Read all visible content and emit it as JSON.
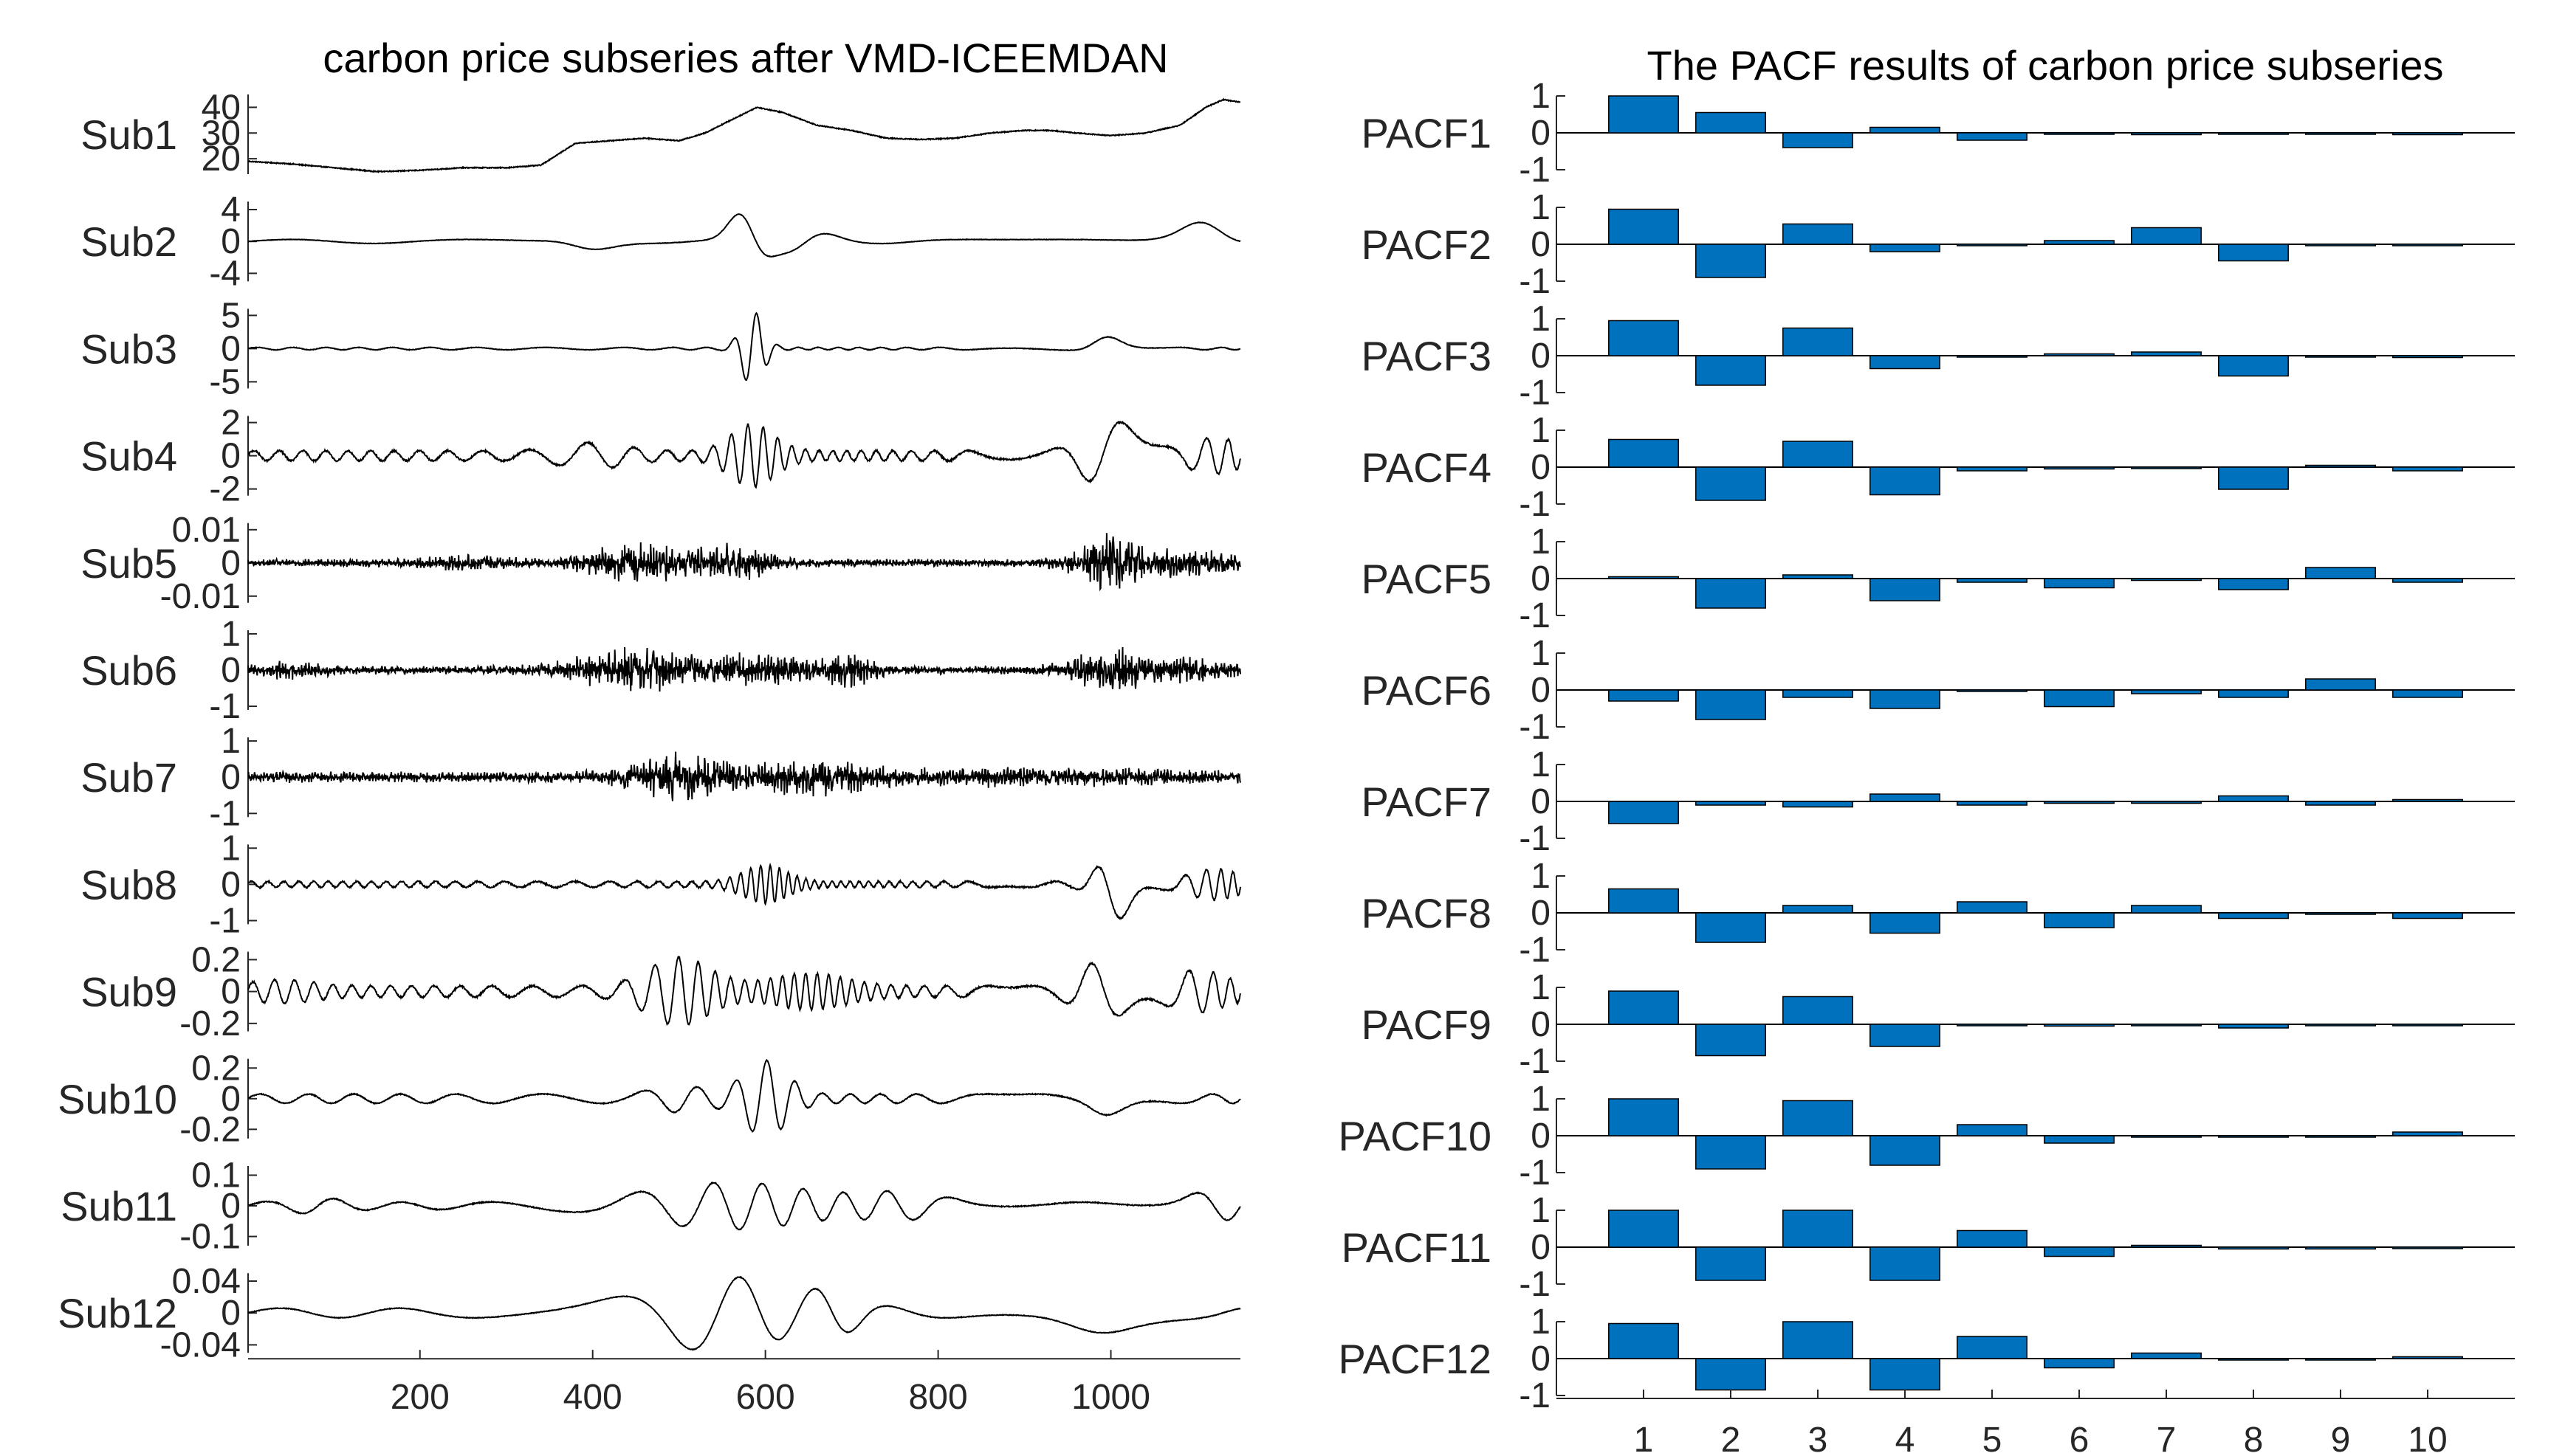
{
  "left_panel": {
    "title": "carbon price subseries after VMD-ICEEMDAN",
    "x_ticks": [
      "200",
      "400",
      "600",
      "800",
      "1000"
    ]
  },
  "right_panel": {
    "title": "The PACF results of carbon price subseries",
    "x_ticks": [
      "1",
      "2",
      "3",
      "4",
      "5",
      "6",
      "7",
      "8",
      "9",
      "10"
    ]
  },
  "chart_data": [
    {
      "type": "line",
      "title": "carbon price subseries after VMD-ICEEMDAN",
      "xlabel": "",
      "xlim": [
        1,
        1150
      ],
      "x_ticks": [
        200,
        400,
        600,
        800,
        1000
      ],
      "rows": [
        {
          "name": "Sub1",
          "ylim": [
            14,
            45
          ],
          "y_ticks": [
            "40",
            "30",
            "20"
          ],
          "y_tick_values": [
            40,
            30,
            20
          ],
          "kind": "trend",
          "trend": [
            [
              1,
              19
            ],
            [
              50,
              18
            ],
            [
              100,
              16.5
            ],
            [
              150,
              15
            ],
            [
              200,
              15.5
            ],
            [
              250,
              16.5
            ],
            [
              300,
              16.5
            ],
            [
              340,
              17.5
            ],
            [
              380,
              26
            ],
            [
              420,
              27
            ],
            [
              460,
              28
            ],
            [
              500,
              27
            ],
            [
              530,
              30
            ],
            [
              560,
              35
            ],
            [
              590,
              40
            ],
            [
              620,
              38
            ],
            [
              660,
              33
            ],
            [
              700,
              31
            ],
            [
              740,
              28
            ],
            [
              780,
              27.5
            ],
            [
              820,
              28
            ],
            [
              860,
              30
            ],
            [
              900,
              31
            ],
            [
              930,
              31
            ],
            [
              960,
              30
            ],
            [
              1000,
              29
            ],
            [
              1040,
              30
            ],
            [
              1080,
              33
            ],
            [
              1110,
              40
            ],
            [
              1130,
              43
            ],
            [
              1150,
              42
            ]
          ],
          "noise": 0.35
        },
        {
          "name": "Sub2",
          "ylim": [
            -5,
            5
          ],
          "y_ticks": [
            "4",
            "0",
            "-4"
          ],
          "y_tick_values": [
            4,
            0,
            -4
          ],
          "kind": "osc",
          "freq": 0.045,
          "base": 0.25,
          "noise": 0.05,
          "bursts": [
            [
              390,
              35,
              1.6
            ],
            [
              580,
              25,
              4.6
            ],
            [
              640,
              45,
              1.2
            ],
            [
              1100,
              35,
              2.2
            ]
          ]
        },
        {
          "name": "Sub3",
          "ylim": [
            -6,
            6
          ],
          "y_ticks": [
            "5",
            "0",
            "-5"
          ],
          "y_tick_values": [
            5,
            0,
            -5
          ],
          "kind": "osc",
          "freq": 0.22,
          "base": 0.18,
          "noise": 0.08,
          "bursts": [
            [
              585,
              18,
              5.5
            ],
            [
              1000,
              30,
              1.6
            ]
          ]
        },
        {
          "name": "Sub4",
          "ylim": [
            -2.4,
            2.4
          ],
          "y_ticks": [
            "2",
            "0",
            "-2"
          ],
          "y_tick_values": [
            2,
            0,
            -2
          ],
          "kind": "osc",
          "freq": 0.32,
          "base": 0.3,
          "noise": 0.1,
          "bursts": [
            [
              400,
              50,
              0.5
            ],
            [
              585,
              35,
              1.6
            ],
            [
              1000,
              40,
              1.9
            ],
            [
              1120,
              40,
              0.8
            ]
          ]
        },
        {
          "name": "Sub5",
          "ylim": [
            -0.012,
            0.012
          ],
          "y_ticks": [
            "0.01",
            "0",
            "-0.01"
          ],
          "y_tick_values": [
            0.01,
            0,
            -0.01
          ],
          "kind": "noise",
          "base": 0.0012,
          "bursts": [
            [
              450,
              60,
              0.006
            ],
            [
              560,
              50,
              0.005
            ],
            [
              1000,
              45,
              0.008
            ],
            [
              1100,
              50,
              0.004
            ],
            [
              250,
              60,
              0.0015
            ]
          ]
        },
        {
          "name": "Sub6",
          "ylim": [
            -1.1,
            1.1
          ],
          "y_ticks": [
            "1",
            "0",
            "-1"
          ],
          "y_tick_values": [
            1,
            0,
            -1
          ],
          "kind": "noise",
          "base": 0.12,
          "bursts": [
            [
              450,
              80,
              0.55
            ],
            [
              600,
              60,
              0.4
            ],
            [
              700,
              30,
              0.4
            ],
            [
              1000,
              50,
              0.55
            ],
            [
              1100,
              40,
              0.3
            ],
            [
              50,
              40,
              0.18
            ]
          ]
        },
        {
          "name": "Sub7",
          "ylim": [
            -1.1,
            1.1
          ],
          "y_ticks": [
            "1",
            "0",
            "-1"
          ],
          "y_tick_values": [
            1,
            0,
            -1
          ],
          "kind": "noise",
          "base": 0.16,
          "bursts": [
            [
              500,
              60,
              0.55
            ],
            [
              650,
              70,
              0.4
            ],
            [
              900,
              200,
              0.15
            ]
          ]
        },
        {
          "name": "Sub8",
          "ylim": [
            -1.1,
            1.1
          ],
          "y_ticks": [
            "1",
            "0",
            "-1"
          ],
          "y_tick_values": [
            1,
            0,
            -1
          ],
          "kind": "osc",
          "freq": 0.5,
          "base": 0.08,
          "noise": 0.04,
          "bursts": [
            [
              600,
              35,
              0.45
            ],
            [
              1010,
              30,
              0.85
            ],
            [
              1120,
              40,
              0.35
            ]
          ]
        },
        {
          "name": "Sub9",
          "ylim": [
            -0.25,
            0.25
          ],
          "y_ticks": [
            "0.2",
            "0",
            "-0.2"
          ],
          "y_tick_values": [
            0.2,
            0,
            -0.2
          ],
          "kind": "osc",
          "freq": 0.38,
          "base": 0.035,
          "noise": 0.01,
          "bursts": [
            [
              500,
              50,
              0.18
            ],
            [
              650,
              60,
              0.08
            ],
            [
              990,
              35,
              0.16
            ],
            [
              1100,
              45,
              0.1
            ],
            [
              40,
              50,
              0.04
            ]
          ]
        },
        {
          "name": "Sub10",
          "ylim": [
            -0.26,
            0.26
          ],
          "y_ticks": [
            "0.2",
            "0",
            "-0.2"
          ],
          "y_tick_values": [
            0.2,
            0,
            -0.2
          ],
          "kind": "osc",
          "freq": 0.16,
          "base": 0.03,
          "noise": 0.006,
          "bursts": [
            [
              600,
              35,
              0.22
            ],
            [
              500,
              40,
              0.06
            ],
            [
              1000,
              30,
              0.08
            ]
          ]
        },
        {
          "name": "Sub11",
          "ylim": [
            -0.13,
            0.13
          ],
          "y_ticks": [
            "0.1",
            "0",
            "-0.1"
          ],
          "y_tick_values": [
            0.1,
            0,
            -0.1
          ],
          "kind": "osc",
          "freq": 0.11,
          "base": 0.012,
          "noise": 0.003,
          "bursts": [
            [
              560,
              130,
              0.065
            ],
            [
              760,
              60,
              0.03
            ],
            [
              1120,
              40,
              0.04
            ],
            [
              80,
              40,
              0.015
            ]
          ]
        },
        {
          "name": "Sub12",
          "ylim": [
            -0.05,
            0.05
          ],
          "y_ticks": [
            "0.04",
            "0",
            "-0.04"
          ],
          "y_tick_values": [
            0.04,
            0,
            -0.04
          ],
          "kind": "osc",
          "freq": 0.062,
          "base": 0.006,
          "noise": 0.0008,
          "bursts": [
            [
              540,
              110,
              0.042
            ],
            [
              680,
              40,
              0.015
            ],
            [
              1000,
              60,
              0.02
            ]
          ]
        }
      ]
    },
    {
      "type": "bar",
      "title": "The PACF results of carbon price subseries",
      "xlabel": "",
      "categories": [
        1,
        2,
        3,
        4,
        5,
        6,
        7,
        8,
        9,
        10
      ],
      "ylim": [
        -1,
        1
      ],
      "y_ticks": [
        "1",
        "0",
        "-1"
      ],
      "y_tick_values": [
        1,
        0,
        -1
      ],
      "bar_color": "#0072BD",
      "series": [
        {
          "name": "PACF1",
          "values": [
            1.0,
            0.55,
            -0.4,
            0.15,
            -0.2,
            0.0,
            -0.05,
            0.0,
            0.0,
            -0.05
          ]
        },
        {
          "name": "PACF2",
          "values": [
            0.95,
            -0.9,
            0.55,
            -0.2,
            0.0,
            0.1,
            0.45,
            -0.45,
            0.0,
            0.0
          ]
        },
        {
          "name": "PACF3",
          "values": [
            0.95,
            -0.8,
            0.75,
            -0.35,
            0.0,
            0.05,
            0.1,
            -0.55,
            0.0,
            -0.05
          ]
        },
        {
          "name": "PACF4",
          "values": [
            0.75,
            -0.9,
            0.7,
            -0.75,
            -0.1,
            -0.05,
            0.0,
            -0.6,
            0.05,
            -0.1
          ]
        },
        {
          "name": "PACF5",
          "values": [
            0.05,
            -0.8,
            0.1,
            -0.6,
            -0.1,
            -0.25,
            -0.05,
            -0.3,
            0.3,
            -0.1
          ]
        },
        {
          "name": "PACF6",
          "values": [
            -0.3,
            -0.8,
            -0.2,
            -0.5,
            0.0,
            -0.45,
            -0.1,
            -0.2,
            0.3,
            -0.2
          ]
        },
        {
          "name": "PACF7",
          "values": [
            -0.6,
            -0.1,
            -0.15,
            0.2,
            -0.1,
            -0.05,
            -0.05,
            0.15,
            -0.1,
            0.05
          ]
        },
        {
          "name": "PACF8",
          "values": [
            0.65,
            -0.8,
            0.2,
            -0.55,
            0.3,
            -0.4,
            0.2,
            -0.15,
            0.0,
            -0.15
          ]
        },
        {
          "name": "PACF9",
          "values": [
            0.9,
            -0.85,
            0.75,
            -0.6,
            0.0,
            -0.05,
            0.0,
            -0.1,
            0.0,
            0.0
          ]
        },
        {
          "name": "PACF10",
          "values": [
            1.0,
            -0.9,
            0.95,
            -0.8,
            0.3,
            -0.2,
            0.0,
            0.0,
            0.0,
            0.1
          ]
        },
        {
          "name": "PACF11",
          "values": [
            1.0,
            -0.9,
            1.0,
            -0.9,
            0.45,
            -0.25,
            0.05,
            -0.05,
            -0.05,
            0.0
          ]
        },
        {
          "name": "PACF12",
          "values": [
            0.95,
            -0.85,
            1.0,
            -0.85,
            0.6,
            -0.25,
            0.15,
            0.0,
            0.0,
            0.05
          ]
        }
      ]
    }
  ]
}
